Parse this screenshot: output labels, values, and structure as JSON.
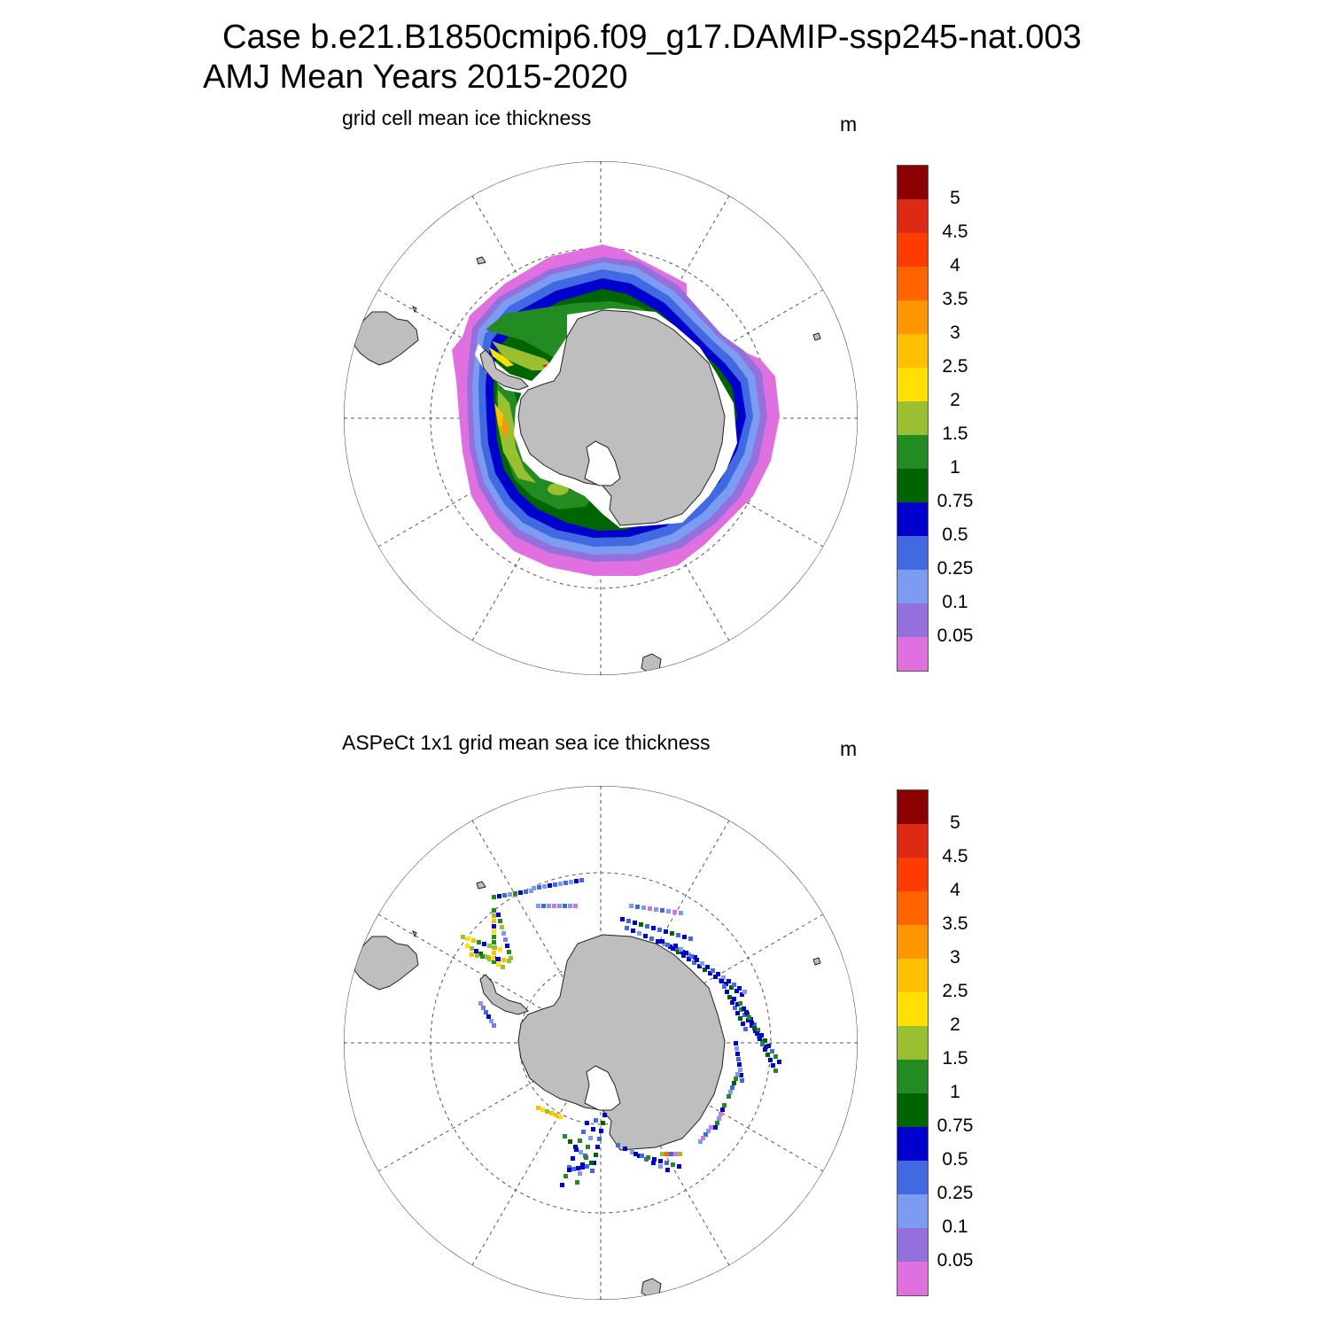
{
  "title": {
    "line1": "Case b.e21.B1850cmip6.f09_g17.DAMIP-ssp245-nat.003",
    "line2": "AMJ Mean   Years 2015-2020"
  },
  "panels": [
    {
      "title": "grid cell mean ice thickness",
      "unit": "m"
    },
    {
      "title": "ASPeCt 1x1 grid mean sea ice thickness",
      "unit": "m"
    }
  ],
  "colorbar": {
    "labels": [
      "5",
      "4.5",
      "4",
      "3.5",
      "3",
      "2.5",
      "2",
      "1.5",
      "1",
      "0.75",
      "0.5",
      "0.25",
      "0.1",
      "0.05"
    ],
    "colors": [
      "#8B0000",
      "#DD2A14",
      "#FF3C00",
      "#FF6400",
      "#FF9500",
      "#FFC000",
      "#FFE000",
      "#9ABF30",
      "#228B22",
      "#006400",
      "#0000CC",
      "#4169E1",
      "#7B9CF0",
      "#9370DB",
      "#E070E0"
    ]
  },
  "colors": {
    "land": "#BEBEBE",
    "grid": "#555555"
  }
}
